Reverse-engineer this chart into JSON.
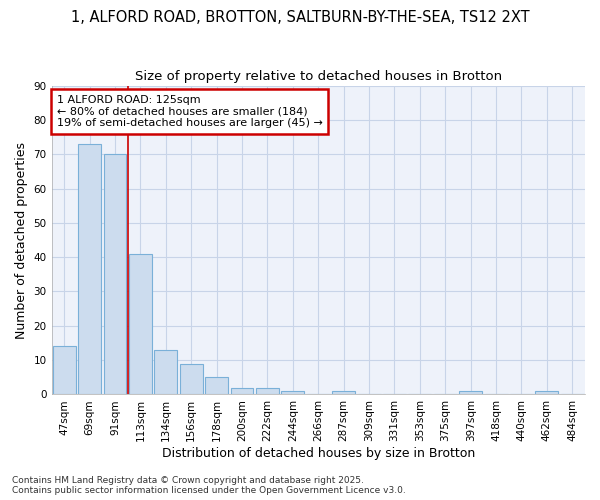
{
  "title_line1": "1, ALFORD ROAD, BROTTON, SALTBURN-BY-THE-SEA, TS12 2XT",
  "title_line2": "Size of property relative to detached houses in Brotton",
  "xlabel": "Distribution of detached houses by size in Brotton",
  "ylabel": "Number of detached properties",
  "categories": [
    "47sqm",
    "69sqm",
    "91sqm",
    "113sqm",
    "134sqm",
    "156sqm",
    "178sqm",
    "200sqm",
    "222sqm",
    "244sqm",
    "266sqm",
    "287sqm",
    "309sqm",
    "331sqm",
    "353sqm",
    "375sqm",
    "397sqm",
    "418sqm",
    "440sqm",
    "462sqm",
    "484sqm"
  ],
  "values": [
    14,
    73,
    70,
    41,
    13,
    9,
    5,
    2,
    2,
    1,
    0,
    1,
    0,
    0,
    0,
    0,
    1,
    0,
    0,
    1,
    0
  ],
  "bar_color": "#ccdcee",
  "bar_edge_color": "#7ab0d8",
  "bar_edge_width": 0.8,
  "grid_color": "#c8d4e8",
  "background_color": "#eef2fa",
  "fig_background_color": "#ffffff",
  "red_line_x": 2.5,
  "red_line_color": "#cc0000",
  "annotation_text": "1 ALFORD ROAD: 125sqm\n← 80% of detached houses are smaller (184)\n19% of semi-detached houses are larger (45) →",
  "annotation_box_color": "#ffffff",
  "annotation_box_edge_color": "#cc0000",
  "ylim": [
    0,
    90
  ],
  "yticks": [
    0,
    10,
    20,
    30,
    40,
    50,
    60,
    70,
    80,
    90
  ],
  "footer_line1": "Contains HM Land Registry data © Crown copyright and database right 2025.",
  "footer_line2": "Contains public sector information licensed under the Open Government Licence v3.0.",
  "title_fontsize": 10.5,
  "subtitle_fontsize": 9.5,
  "axis_label_fontsize": 9,
  "tick_fontsize": 7.5,
  "footer_fontsize": 6.5,
  "bar_width": 0.9
}
